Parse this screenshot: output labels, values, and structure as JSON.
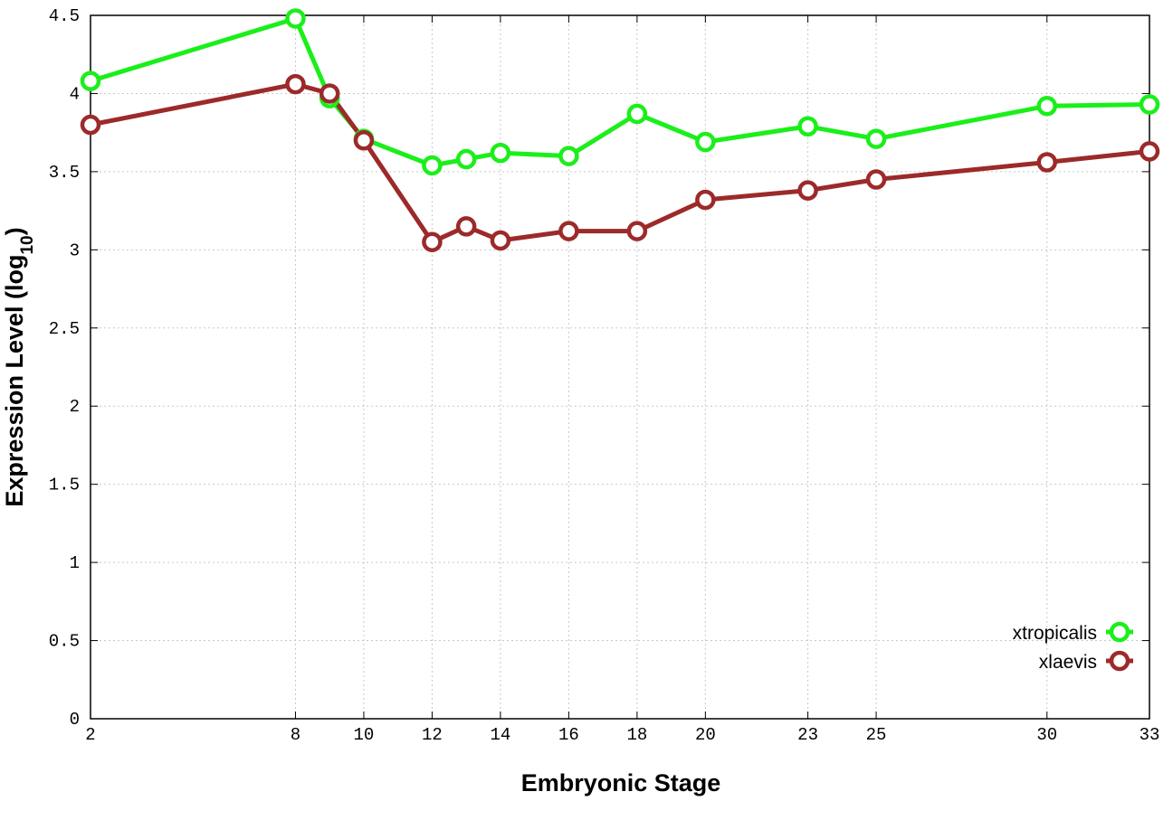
{
  "chart_data": {
    "type": "line",
    "xlabel": "Embryonic Stage",
    "ylabel_main": "Expression Level (log",
    "ylabel_sub": "10",
    "ylabel_close": ")",
    "xlim": [
      2,
      33
    ],
    "ylim": [
      0,
      4.5
    ],
    "x_ticks": [
      2,
      8,
      10,
      12,
      14,
      16,
      18,
      20,
      23,
      25,
      30,
      33
    ],
    "x_tick_labels": [
      "2",
      "8",
      "10",
      "12",
      "14",
      "16",
      "18",
      "20",
      "23",
      "25",
      "30",
      "33"
    ],
    "y_ticks": [
      0,
      0.5,
      1,
      1.5,
      2,
      2.5,
      3,
      3.5,
      4,
      4.5
    ],
    "y_tick_labels": [
      "0",
      "0.5",
      "1",
      "1.5",
      "2",
      "2.5",
      "3",
      "3.5",
      "4",
      "4.5"
    ],
    "grid": true,
    "legend_position": "bottom-right",
    "series": [
      {
        "name": "xtropicalis",
        "color": "#1aef1a",
        "x": [
          2,
          8,
          9,
          10,
          12,
          13,
          14,
          16,
          18,
          20,
          23,
          25,
          30,
          33
        ],
        "y": [
          4.08,
          4.48,
          3.97,
          3.71,
          3.54,
          3.58,
          3.62,
          3.6,
          3.87,
          3.69,
          3.79,
          3.71,
          3.92,
          3.93
        ]
      },
      {
        "name": "xlaevis",
        "color": "#9c2a2a",
        "x": [
          2,
          8,
          9,
          10,
          12,
          13,
          14,
          16,
          18,
          20,
          23,
          25,
          30,
          33
        ],
        "y": [
          3.8,
          4.06,
          4.0,
          3.7,
          3.05,
          3.15,
          3.06,
          3.12,
          3.12,
          3.32,
          3.38,
          3.45,
          3.56,
          3.63
        ]
      }
    ]
  }
}
